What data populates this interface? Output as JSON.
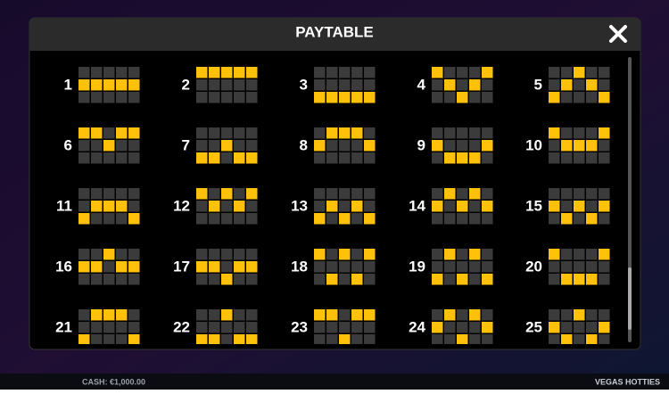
{
  "header": {
    "title": "PAYTABLE"
  },
  "paylines": [
    {
      "label": "1",
      "rows": [
        1,
        1,
        1,
        1,
        1
      ]
    },
    {
      "label": "2",
      "rows": [
        0,
        0,
        0,
        0,
        0
      ]
    },
    {
      "label": "3",
      "rows": [
        2,
        2,
        2,
        2,
        2
      ]
    },
    {
      "label": "4",
      "rows": [
        0,
        1,
        2,
        1,
        0
      ]
    },
    {
      "label": "5",
      "rows": [
        2,
        1,
        0,
        1,
        2
      ]
    },
    {
      "label": "6",
      "rows": [
        0,
        0,
        1,
        0,
        0
      ]
    },
    {
      "label": "7",
      "rows": [
        2,
        2,
        1,
        2,
        2
      ]
    },
    {
      "label": "8",
      "rows": [
        1,
        0,
        0,
        0,
        1
      ]
    },
    {
      "label": "9",
      "rows": [
        1,
        2,
        2,
        2,
        1
      ]
    },
    {
      "label": "10",
      "rows": [
        0,
        1,
        1,
        1,
        0
      ]
    },
    {
      "label": "11",
      "rows": [
        2,
        1,
        1,
        1,
        2
      ]
    },
    {
      "label": "12",
      "rows": [
        0,
        1,
        0,
        1,
        0
      ]
    },
    {
      "label": "13",
      "rows": [
        2,
        1,
        2,
        1,
        2
      ]
    },
    {
      "label": "14",
      "rows": [
        1,
        0,
        1,
        0,
        1
      ]
    },
    {
      "label": "15",
      "rows": [
        1,
        2,
        1,
        2,
        1
      ]
    },
    {
      "label": "16",
      "rows": [
        1,
        1,
        0,
        1,
        1
      ]
    },
    {
      "label": "17",
      "rows": [
        1,
        1,
        2,
        1,
        1
      ]
    },
    {
      "label": "18",
      "rows": [
        0,
        2,
        0,
        2,
        0
      ]
    },
    {
      "label": "19",
      "rows": [
        2,
        0,
        2,
        0,
        2
      ]
    },
    {
      "label": "20",
      "rows": [
        0,
        2,
        2,
        2,
        0
      ]
    },
    {
      "label": "21",
      "rows": [
        2,
        0,
        0,
        0,
        2
      ]
    },
    {
      "label": "22",
      "rows": [
        2,
        2,
        0,
        2,
        2
      ]
    },
    {
      "label": "23",
      "rows": [
        0,
        0,
        2,
        0,
        0
      ]
    },
    {
      "label": "24",
      "rows": [
        1,
        0,
        2,
        0,
        1
      ]
    },
    {
      "label": "25",
      "rows": [
        1,
        2,
        0,
        2,
        1
      ]
    }
  ],
  "footer": {
    "cash": "CASH: €1,000.00",
    "game": "VEGAS HOTTIES"
  }
}
